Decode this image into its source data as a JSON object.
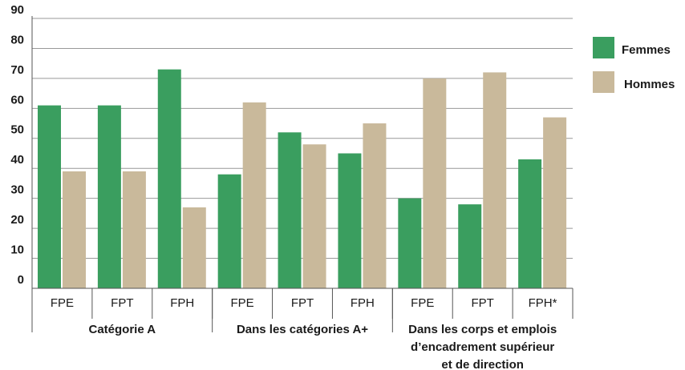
{
  "chart_data": {
    "type": "bar",
    "categories": [
      "FPE",
      "FPT",
      "FPH",
      "FPE",
      "FPT",
      "FPH",
      "FPE",
      "FPT",
      "FPH*"
    ],
    "groups": [
      {
        "label": [
          "Catégorie A"
        ]
      },
      {
        "label": [
          "Dans les catégories A+"
        ]
      },
      {
        "label": [
          "Dans les corps et emplois",
          "d’encadrement supérieur",
          "et de direction"
        ]
      }
    ],
    "series": [
      {
        "name": "Femmes",
        "color": "#3a9e5f",
        "values": [
          61,
          61,
          73,
          38,
          52,
          45,
          30,
          28,
          43
        ]
      },
      {
        "name": "Hommes",
        "color": "#c9b99b",
        "values": [
          39,
          39,
          27,
          62,
          48,
          55,
          70,
          72,
          57
        ]
      }
    ],
    "ylim": [
      0,
      90
    ],
    "yticks": [
      0,
      10,
      20,
      30,
      40,
      50,
      60,
      70,
      80,
      90
    ],
    "grid": true,
    "legend": "right"
  }
}
